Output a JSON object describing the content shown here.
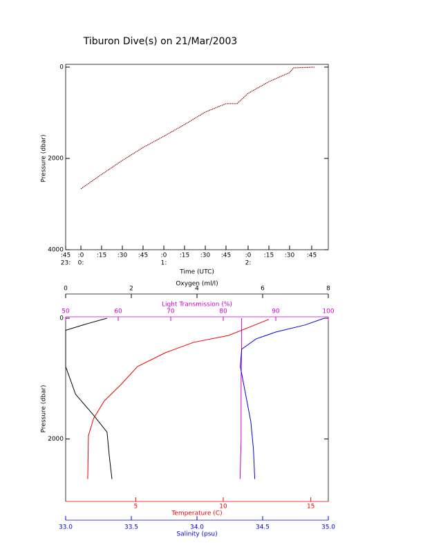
{
  "chart_data": [
    {
      "type": "line",
      "title": "Tiburon Dive(s) on 21/Mar/2003",
      "x_label": "Time (UTC)",
      "y_label": "Pressure (dbar)",
      "xlim": [
        -11,
        179
      ],
      "ylim": [
        0,
        4000
      ],
      "y_inverted": true,
      "xticks": [
        {
          "value": -11,
          "label": ":45"
        },
        {
          "value": 0,
          "label": ":0"
        },
        {
          "value": 15,
          "label": ":15"
        },
        {
          "value": 30,
          "label": ":30"
        },
        {
          "value": 45,
          "label": ":45"
        },
        {
          "value": 60,
          "label": ":0"
        },
        {
          "value": 75,
          "label": ":15"
        },
        {
          "value": 90,
          "label": ":30"
        },
        {
          "value": 105,
          "label": ":45"
        },
        {
          "value": 121,
          "label": ":0"
        },
        {
          "value": 136,
          "label": ":15"
        },
        {
          "value": 151,
          "label": ":30"
        },
        {
          "value": 167,
          "label": ":45"
        }
      ],
      "xticks_hours": [
        {
          "value": -11,
          "label": "23:"
        },
        {
          "value": 0,
          "label": "0:"
        },
        {
          "value": 60,
          "label": "1:"
        },
        {
          "value": 121,
          "label": "2:"
        }
      ],
      "yticks": [
        0,
        2000,
        4000
      ],
      "series": [
        {
          "color": "#8b0000",
          "x": [
            0,
            15,
            30,
            45,
            60,
            75,
            90,
            105,
            113,
            121,
            136,
            151,
            154,
            169
          ],
          "values": [
            2667,
            2350,
            2045,
            1760,
            1515,
            1258,
            985,
            800,
            800,
            575,
            320,
            120,
            15,
            0
          ]
        }
      ]
    },
    {
      "type": "profile",
      "y_label": "Pressure (dbar)",
      "ylim": [
        0,
        3000
      ],
      "y_inverted": true,
      "yticks": [
        0,
        2000
      ],
      "x_axes": [
        {
          "label": "Oxygen (ml/l)",
          "lim": [
            0,
            8
          ],
          "ticks": [
            0,
            2,
            4,
            6,
            8
          ],
          "color": "#000000",
          "position": "top"
        },
        {
          "label": "Light Transmission (%)",
          "lim": [
            50,
            100
          ],
          "ticks": [
            50,
            60,
            70,
            80,
            90,
            100
          ],
          "color": "#cc00cc",
          "position": "top2"
        },
        {
          "label": "Temperature (C)",
          "lim": [
            1,
            16
          ],
          "ticks": [
            5,
            10,
            15
          ],
          "color": "#ee0000",
          "position": "bottom"
        },
        {
          "label": "Salinity (psu)",
          "lim": [
            33,
            35
          ],
          "ticks": [
            {
              "value": 33,
              "label": "33.0"
            },
            33.5,
            {
              "value": 34,
              "label": "34.0"
            },
            34.5,
            {
              "value": 35,
              "label": "35.0"
            }
          ],
          "color": "#0000dd",
          "position": "bottom2"
        }
      ],
      "series": [
        {
          "axis": 0,
          "color": "#000000",
          "pressure": [
            0,
            100,
            200,
            800,
            1257,
            1600,
            1886,
            2286,
            2663
          ],
          "values": [
            1.26,
            0.6,
            0,
            0,
            0.3,
            0.84,
            1.26,
            1.33,
            1.41
          ]
        },
        {
          "axis": 1,
          "color": "#cc00cc",
          "pressure": [
            0,
            500,
            1000,
            2000,
            2663
          ],
          "values": [
            83.5,
            83.5,
            83.4,
            83.4,
            83.2
          ]
        },
        {
          "axis": 2,
          "color": "#ee0000",
          "pressure": [
            20,
            286,
            400,
            571,
            800,
            1086,
            1371,
            1657,
            1943,
            2663
          ],
          "values": [
            12.6,
            10.3,
            8.3,
            6.7,
            5.1,
            4.2,
            3.2,
            2.6,
            2.3,
            2.26
          ]
        },
        {
          "axis": 3,
          "color": "#0000dd",
          "pressure": [
            0,
            114,
            229,
            343,
            514,
            800,
            1257,
            1714,
            2171,
            2663
          ],
          "values": [
            34.97,
            34.82,
            34.6,
            34.45,
            34.34,
            34.33,
            34.37,
            34.41,
            34.43,
            34.44
          ]
        }
      ]
    }
  ]
}
